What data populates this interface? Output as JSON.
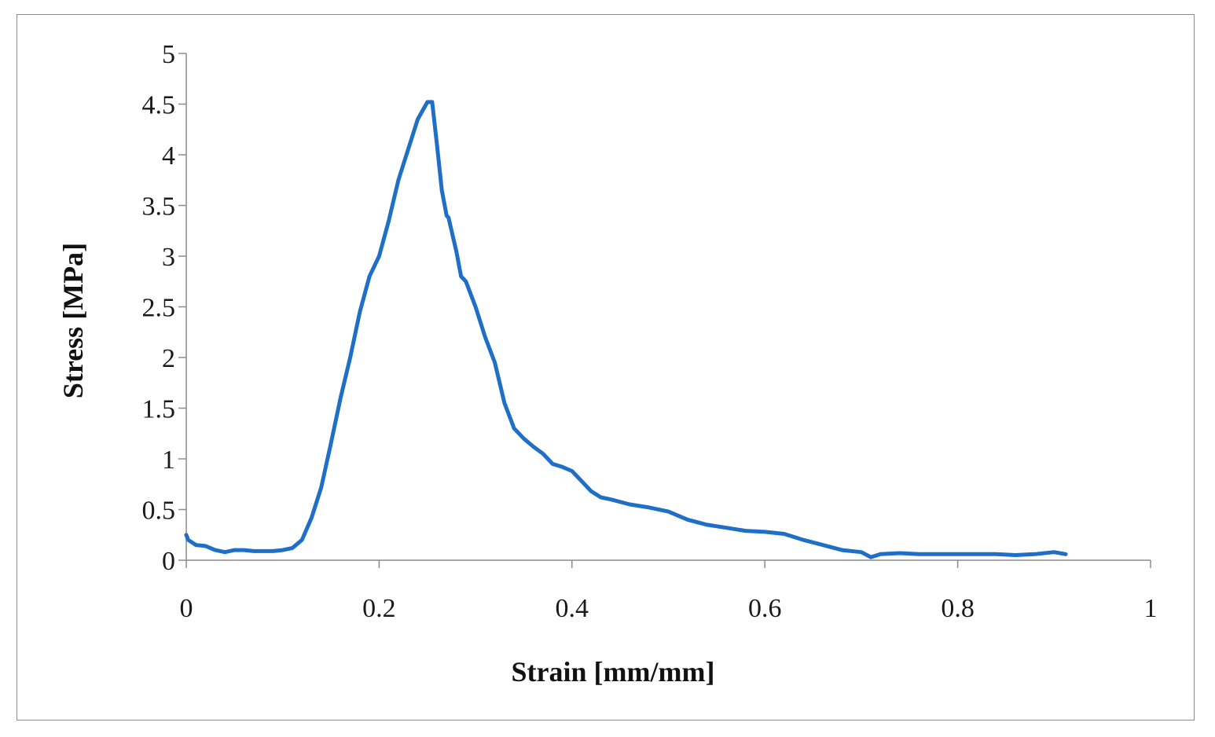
{
  "chart_data": {
    "type": "line",
    "xlabel": "Strain [mm/mm]",
    "ylabel": "Stress [MPa]",
    "xlim": [
      0,
      1
    ],
    "ylim": [
      0,
      5
    ],
    "xticks": [
      0,
      0.2,
      0.4,
      0.6,
      0.8,
      1
    ],
    "xtick_labels": [
      "0",
      "0.2",
      "0.4",
      "0.6",
      "0.8",
      "1"
    ],
    "yticks": [
      0,
      0.5,
      1,
      1.5,
      2,
      2.5,
      3,
      3.5,
      4,
      4.5,
      5
    ],
    "ytick_labels": [
      "0",
      "0.5",
      "1",
      "1.5",
      "2",
      "2.5",
      "3",
      "3.5",
      "4",
      "4.5",
      "5"
    ],
    "grid": false,
    "legend": "none",
    "colors": {
      "line": "#1f6fc6",
      "axis": "#8c8c8c"
    },
    "series": [
      {
        "x": [
          0,
          0.002,
          0.01,
          0.02,
          0.03,
          0.04,
          0.05,
          0.06,
          0.07,
          0.08,
          0.09,
          0.1,
          0.11,
          0.12,
          0.13,
          0.14,
          0.15,
          0.16,
          0.17,
          0.18,
          0.19,
          0.2,
          0.21,
          0.22,
          0.23,
          0.24,
          0.25,
          0.255,
          0.26,
          0.265,
          0.27,
          0.272,
          0.28,
          0.285,
          0.29,
          0.3,
          0.31,
          0.32,
          0.33,
          0.34,
          0.35,
          0.36,
          0.37,
          0.38,
          0.39,
          0.4,
          0.41,
          0.42,
          0.43,
          0.44,
          0.46,
          0.48,
          0.5,
          0.52,
          0.54,
          0.56,
          0.58,
          0.6,
          0.62,
          0.64,
          0.66,
          0.68,
          0.7,
          0.71,
          0.72,
          0.74,
          0.76,
          0.78,
          0.8,
          0.82,
          0.84,
          0.86,
          0.88,
          0.9,
          0.912
        ],
        "y": [
          0.25,
          0.2,
          0.15,
          0.14,
          0.1,
          0.08,
          0.1,
          0.1,
          0.09,
          0.09,
          0.09,
          0.1,
          0.12,
          0.2,
          0.42,
          0.72,
          1.15,
          1.6,
          2.0,
          2.45,
          2.8,
          3.0,
          3.35,
          3.75,
          4.05,
          4.35,
          4.52,
          4.52,
          4.1,
          3.65,
          3.4,
          3.38,
          3.05,
          2.8,
          2.75,
          2.5,
          2.2,
          1.95,
          1.55,
          1.3,
          1.2,
          1.12,
          1.05,
          0.95,
          0.92,
          0.88,
          0.78,
          0.68,
          0.62,
          0.6,
          0.55,
          0.52,
          0.48,
          0.4,
          0.35,
          0.32,
          0.29,
          0.28,
          0.26,
          0.2,
          0.15,
          0.1,
          0.08,
          0.03,
          0.06,
          0.07,
          0.06,
          0.06,
          0.06,
          0.06,
          0.06,
          0.05,
          0.06,
          0.08,
          0.06
        ]
      }
    ]
  }
}
